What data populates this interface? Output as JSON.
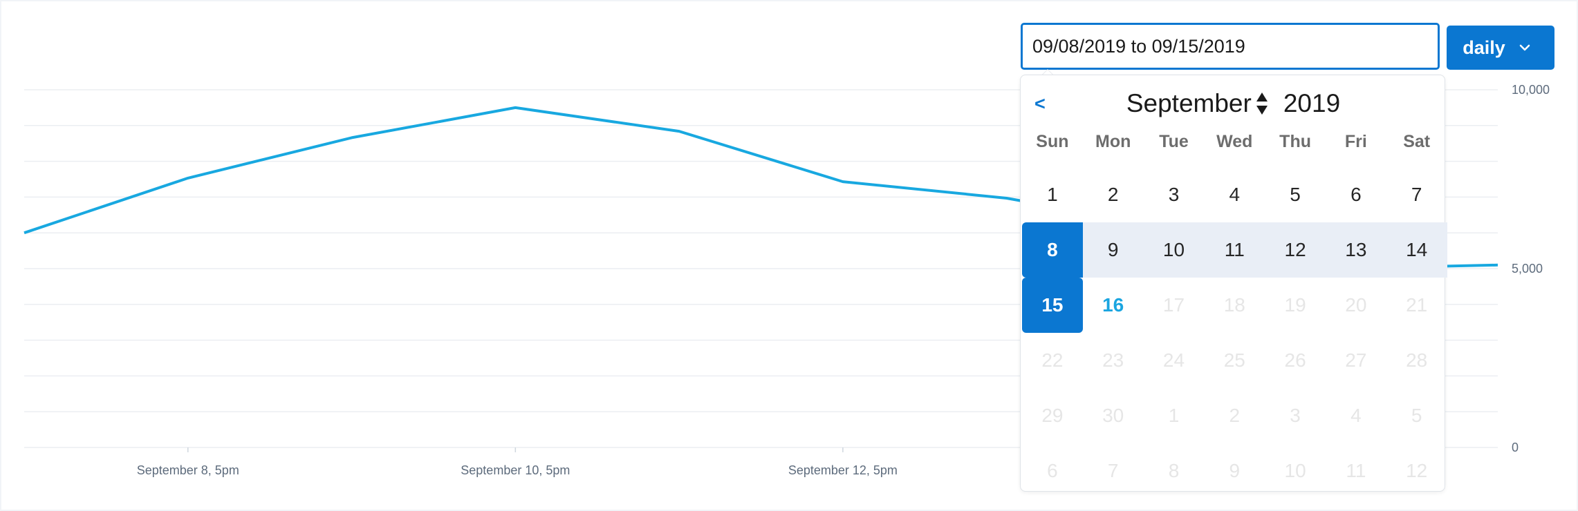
{
  "colors": {
    "accent": "#0b77d1",
    "line": "#18a8e0",
    "grid": "#ebeef2",
    "tick_text": "#5d6b7c",
    "range_bg": "#e9eef6",
    "today": "#1aa5e0"
  },
  "controls": {
    "date_range_value": "09/08/2019 to 09/15/2019",
    "period_label": "daily"
  },
  "calendar": {
    "prev_label": "<",
    "month": "September",
    "year": "2019",
    "weekdays": [
      "Sun",
      "Mon",
      "Tue",
      "Wed",
      "Thu",
      "Fri",
      "Sat"
    ],
    "days": [
      {
        "label": "1",
        "state": "normal"
      },
      {
        "label": "2",
        "state": "normal"
      },
      {
        "label": "3",
        "state": "normal"
      },
      {
        "label": "4",
        "state": "normal"
      },
      {
        "label": "5",
        "state": "normal"
      },
      {
        "label": "6",
        "state": "normal"
      },
      {
        "label": "7",
        "state": "normal"
      },
      {
        "label": "8",
        "state": "range-start"
      },
      {
        "label": "9",
        "state": "in-range"
      },
      {
        "label": "10",
        "state": "in-range"
      },
      {
        "label": "11",
        "state": "in-range"
      },
      {
        "label": "12",
        "state": "in-range"
      },
      {
        "label": "13",
        "state": "in-range"
      },
      {
        "label": "14",
        "state": "in-range"
      },
      {
        "label": "15",
        "state": "range-end"
      },
      {
        "label": "16",
        "state": "today"
      },
      {
        "label": "17",
        "state": "disabled"
      },
      {
        "label": "18",
        "state": "disabled"
      },
      {
        "label": "19",
        "state": "disabled"
      },
      {
        "label": "20",
        "state": "disabled"
      },
      {
        "label": "21",
        "state": "disabled"
      },
      {
        "label": "22",
        "state": "disabled"
      },
      {
        "label": "23",
        "state": "disabled"
      },
      {
        "label": "24",
        "state": "disabled"
      },
      {
        "label": "25",
        "state": "disabled"
      },
      {
        "label": "26",
        "state": "disabled"
      },
      {
        "label": "27",
        "state": "disabled"
      },
      {
        "label": "28",
        "state": "disabled"
      },
      {
        "label": "29",
        "state": "disabled"
      },
      {
        "label": "30",
        "state": "disabled"
      },
      {
        "label": "1",
        "state": "other"
      },
      {
        "label": "2",
        "state": "other"
      },
      {
        "label": "3",
        "state": "other"
      },
      {
        "label": "4",
        "state": "other"
      },
      {
        "label": "5",
        "state": "other"
      },
      {
        "label": "6",
        "state": "other"
      },
      {
        "label": "7",
        "state": "other"
      },
      {
        "label": "8",
        "state": "other"
      },
      {
        "label": "9",
        "state": "other"
      },
      {
        "label": "10",
        "state": "other"
      },
      {
        "label": "11",
        "state": "other"
      },
      {
        "label": "12",
        "state": "other"
      }
    ]
  },
  "chart_data": {
    "type": "line",
    "title": "",
    "xlabel": "",
    "ylabel": "",
    "x_tick_labels": [
      "September 8, 5pm",
      "September 10, 5pm",
      "September 12, 5pm"
    ],
    "y_tick_labels": [
      "10,000",
      "5,000",
      "0"
    ],
    "ylim": [
      0,
      10000
    ],
    "grid": true,
    "series": [
      {
        "values": [
          6000,
          7530,
          8660,
          9500,
          8840,
          7430,
          6970,
          6150,
          5000,
          5100
        ]
      }
    ]
  }
}
